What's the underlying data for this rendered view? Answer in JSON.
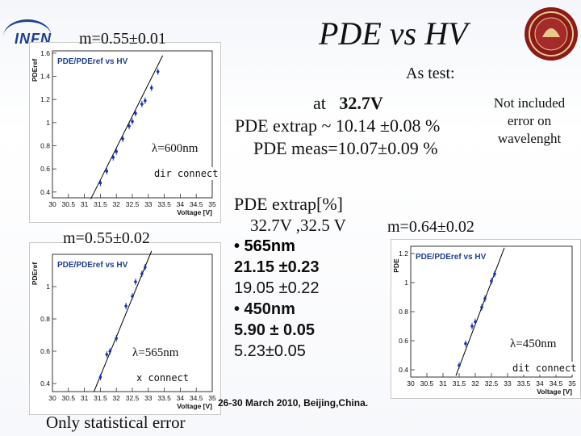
{
  "header": {
    "title": "PDE vs HV",
    "logo_text": "INFN"
  },
  "notes": {
    "as_test": "As test:",
    "at_label": "at",
    "at_value": "32.7V",
    "extrap_line": "PDE extrap ~ 10.14 ±0.08 %",
    "meas_line": "PDE meas=10.07±0.09 %",
    "not_included": "Not included error on wavelenght"
  },
  "extrap_block": {
    "heading": "PDE extrap[%]",
    "voltages": "32.7V ,32.5 V",
    "item1_label": "• 565nm",
    "item1_v1": "21.15 ±0.23",
    "item1_v2": "19.05 ±0.22",
    "item2_label": "• 450nm",
    "item2_v1": "5.90 ± 0.05",
    "item2_v2": "5.23±0.05"
  },
  "footer": {
    "conference": "26-30 March 2010, Beijing,China.",
    "stat_note": "Only statistical error"
  },
  "colors": {
    "points": "#1a2fb0",
    "fit_line": "#000000",
    "logo_blue": "#1d3f8f",
    "seal_red": "#8b1a1a"
  },
  "chart_data": [
    {
      "type": "scatter",
      "title": "PDE/PDEref vs HV",
      "xlabel": "Voltage [V]",
      "ylabel": "PDEref",
      "xlim": [
        30,
        35
      ],
      "ylim": [
        0.35,
        1.62
      ],
      "xticks": [
        "30",
        "30.5",
        "31",
        "31.5",
        "32",
        "32.5",
        "33",
        "33.5",
        "34",
        "34.5",
        "35"
      ],
      "yticks": [
        "0.4",
        "0.6",
        "0.8",
        "1",
        "1.2",
        "1.4",
        "1.6"
      ],
      "slope_label": "m=0.55±0.01",
      "wavelength_label": "λ=600nm",
      "connect_label": "dir connect",
      "fit": [
        [
          31.2,
          0.34
        ],
        [
          33.45,
          1.58
        ]
      ],
      "x": [
        31.5,
        31.7,
        31.9,
        32.0,
        32.2,
        32.4,
        32.5,
        32.6,
        32.8,
        32.9,
        33.1,
        33.3
      ],
      "y": [
        0.48,
        0.58,
        0.7,
        0.75,
        0.86,
        0.97,
        1.01,
        1.08,
        1.16,
        1.19,
        1.3,
        1.44
      ]
    },
    {
      "type": "scatter",
      "title": "PDE/PDEref vs HV",
      "xlabel": "Voltage [V]",
      "ylabel": "PDEref",
      "xlim": [
        30,
        35
      ],
      "ylim": [
        0.35,
        1.2
      ],
      "xticks": [
        "30",
        "30.5",
        "31",
        "31.5",
        "32",
        "32.5",
        "33",
        "33.5",
        "34",
        "34.5",
        "35"
      ],
      "yticks": [
        "0.4",
        "0.6",
        "0.8",
        "1"
      ],
      "slope_label": "m=0.55±0.02",
      "wavelength_label": "λ=565nm",
      "connect_label": "x connect",
      "fit": [
        [
          31.3,
          0.35
        ],
        [
          33.1,
          1.22
        ]
      ],
      "x": [
        31.5,
        31.7,
        31.8,
        32.0,
        32.3,
        32.5,
        32.6,
        32.8,
        32.9
      ],
      "y": [
        0.44,
        0.58,
        0.6,
        0.68,
        0.88,
        0.94,
        1.03,
        1.08,
        1.12
      ]
    },
    {
      "type": "scatter",
      "title": "PDE/PDEref vs HV",
      "xlabel": "Voltage [V]",
      "ylabel": "PDE",
      "xlim": [
        30,
        35
      ],
      "ylim": [
        0.35,
        1.25
      ],
      "xticks": [
        "30",
        "30.5",
        "31",
        "31.5",
        "32",
        "32.5",
        "33",
        "33.5",
        "34",
        "34.5",
        "35"
      ],
      "yticks": [
        "0.4",
        "0.6",
        "0.8",
        "1",
        "1.2"
      ],
      "slope_label": "m=0.64±0.02",
      "wavelength_label": "λ=450nm",
      "connect_label": "dit connect",
      "fit": [
        [
          31.4,
          0.36
        ],
        [
          32.9,
          1.24
        ]
      ],
      "x": [
        31.5,
        31.7,
        31.9,
        32.0,
        32.2,
        32.3,
        32.5,
        32.6
      ],
      "y": [
        0.43,
        0.58,
        0.7,
        0.73,
        0.83,
        0.89,
        1.01,
        1.06
      ]
    }
  ]
}
